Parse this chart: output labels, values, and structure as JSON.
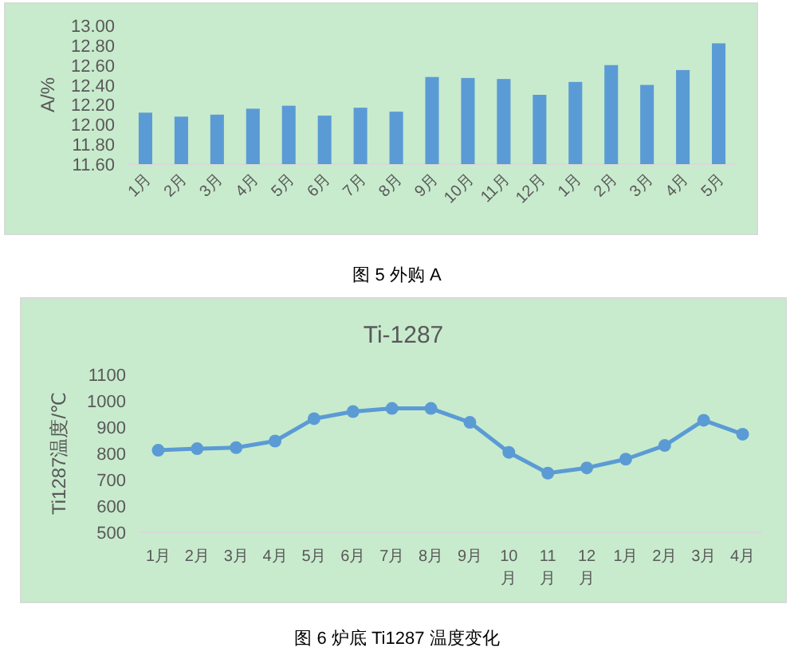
{
  "chart_data": [
    {
      "type": "bar",
      "ylabel": "A/%",
      "annotations": [
        "图 5 外购 A"
      ],
      "categories": [
        "1月",
        "2月",
        "3月",
        "4月",
        "5月",
        "6月",
        "7月",
        "8月",
        "9月",
        "10月",
        "11月",
        "12月",
        "1月",
        "2月",
        "3月",
        "4月",
        "5月"
      ],
      "values": [
        12.12,
        12.08,
        12.1,
        12.16,
        12.19,
        12.09,
        12.17,
        12.13,
        12.48,
        12.47,
        12.46,
        12.3,
        12.43,
        12.6,
        12.4,
        12.55,
        12.82
      ],
      "color": "#5b9bd5",
      "ylim": [
        11.6,
        13.0
      ],
      "yticks": [
        {
          "value": 11.6,
          "label": "11.60"
        },
        {
          "value": 11.8,
          "label": "11.80"
        },
        {
          "value": 12.0,
          "label": "12.00"
        },
        {
          "value": 12.2,
          "label": "12.20"
        },
        {
          "value": 12.4,
          "label": "12.40"
        },
        {
          "value": 12.6,
          "label": "12.60"
        },
        {
          "value": 12.8,
          "label": "12.80"
        },
        {
          "value": 13.0,
          "label": "13.00"
        }
      ],
      "grid": false
    },
    {
      "type": "line",
      "title": "Ti-1287",
      "ylabel": "Ti1287温度/℃",
      "annotations": [
        "图 6  炉底 Ti1287  温度变化"
      ],
      "categories": [
        "1月",
        "2月",
        "3月",
        "4月",
        "5月",
        "6月",
        "7月",
        "8月",
        "9月",
        "10月",
        "11月",
        "12月",
        "1月",
        "2月",
        "3月",
        "4月"
      ],
      "values": [
        812,
        818,
        822,
        847,
        932,
        959,
        971,
        971,
        918,
        804,
        725,
        745,
        778,
        830,
        926,
        873
      ],
      "color": "#5b9bd5",
      "marker": "circle",
      "line_style": "solid",
      "ylim": [
        500,
        1100
      ],
      "yticks": [
        500,
        600,
        700,
        800,
        900,
        1000,
        1100
      ],
      "grid": false
    }
  ]
}
